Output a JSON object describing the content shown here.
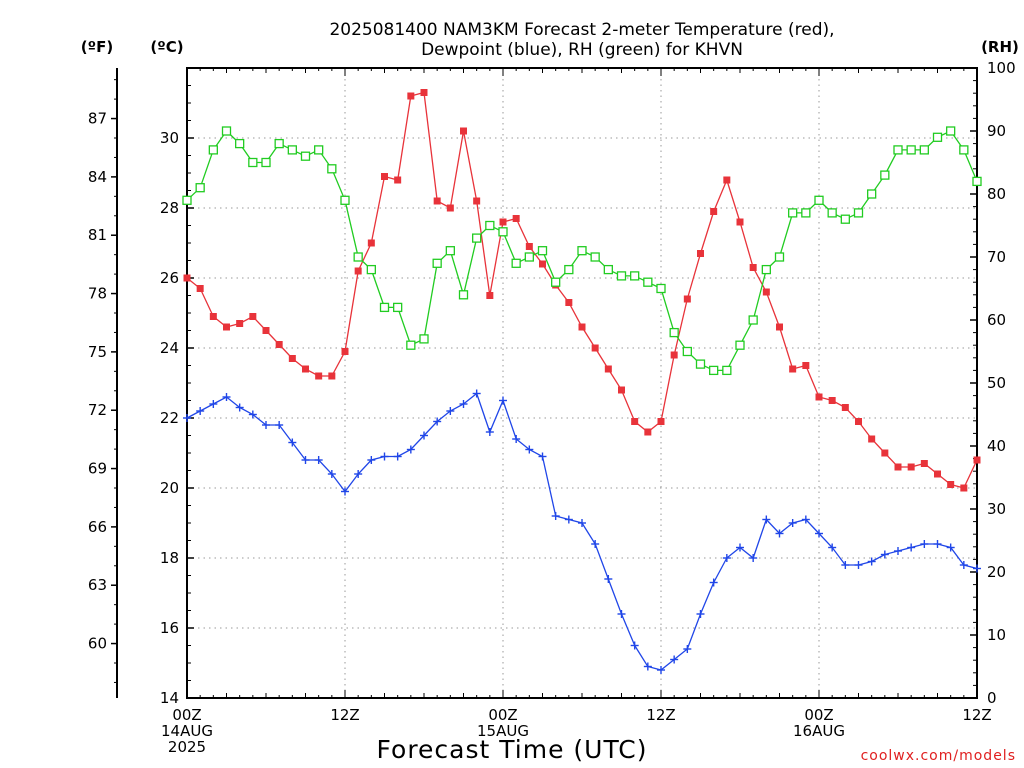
{
  "chart_data": {
    "type": "line",
    "title_lines": [
      "2025081400 NAM3KM Forecast 2-meter Temperature (red),",
      "Dewpoint (blue), RH (green) for KHVN"
    ],
    "xlabel": "Forecast Time (UTC)",
    "credit": "coolwx.com/models",
    "units": {
      "fahrenheit": "(ºF)",
      "celsius": "(ºC)",
      "rh": "(RH)"
    },
    "x_ticks": [
      {
        "h": 0,
        "lines": [
          "00Z",
          "14AUG",
          "2025"
        ]
      },
      {
        "h": 12,
        "lines": [
          "12Z"
        ]
      },
      {
        "h": 24,
        "lines": [
          "00Z",
          "15AUG"
        ]
      },
      {
        "h": 36,
        "lines": [
          "12Z"
        ]
      },
      {
        "h": 48,
        "lines": [
          "00Z",
          "16AUG"
        ]
      },
      {
        "h": 60,
        "lines": [
          "12Z"
        ]
      }
    ],
    "xlim": [
      0,
      60
    ],
    "celsius_ylim": [
      14,
      32
    ],
    "celsius_ticks": [
      "14",
      "16",
      "18",
      "20",
      "22",
      "24",
      "26",
      "28",
      "30"
    ],
    "fahrenheit_ticks": [
      "60",
      "63",
      "66",
      "69",
      "72",
      "75",
      "78",
      "81",
      "84",
      "87"
    ],
    "rh_ylim": [
      0,
      100
    ],
    "rh_ticks": [
      "0",
      "10",
      "20",
      "30",
      "40",
      "50",
      "60",
      "70",
      "80",
      "90",
      "100"
    ],
    "grid": true,
    "x_hours": [
      0,
      1,
      2,
      3,
      4,
      5,
      6,
      7,
      8,
      9,
      10,
      11,
      12,
      13,
      14,
      15,
      16,
      17,
      18,
      19,
      20,
      21,
      22,
      23,
      24,
      25,
      26,
      27,
      28,
      29,
      30,
      31,
      32,
      33,
      34,
      35,
      36,
      37,
      38,
      39,
      40,
      41,
      42,
      43,
      44,
      45,
      46,
      47,
      48,
      49,
      50,
      51,
      52,
      53,
      54,
      55,
      56,
      57,
      58,
      59,
      60
    ],
    "series": [
      {
        "name": "Temperature",
        "color": "#e8333a",
        "axis": "celsius",
        "marker": "filled-square",
        "values": [
          26.0,
          25.7,
          24.9,
          24.6,
          24.7,
          24.9,
          24.5,
          24.1,
          23.7,
          23.4,
          23.2,
          23.2,
          23.9,
          26.2,
          27.0,
          28.9,
          28.8,
          31.2,
          31.3,
          28.2,
          28.0,
          30.2,
          28.2,
          25.5,
          27.6,
          27.7,
          26.9,
          26.4,
          25.8,
          25.3,
          24.6,
          24.0,
          23.4,
          22.8,
          21.9,
          21.6,
          21.9,
          23.8,
          25.4,
          26.7,
          27.9,
          28.8,
          27.6,
          26.3,
          25.6,
          24.6,
          23.4,
          23.5,
          22.6,
          22.5,
          22.3,
          21.9,
          21.4,
          21.0,
          20.6,
          20.6,
          20.7,
          20.4,
          20.1,
          20.0,
          20.8
        ]
      },
      {
        "name": "Dewpoint",
        "color": "#2046e8",
        "axis": "celsius",
        "marker": "plus",
        "values": [
          22.0,
          22.2,
          22.4,
          22.6,
          22.3,
          22.1,
          21.8,
          21.8,
          21.3,
          20.8,
          20.8,
          20.4,
          19.9,
          20.4,
          20.8,
          20.9,
          20.9,
          21.1,
          21.5,
          21.9,
          22.2,
          22.4,
          22.7,
          21.6,
          22.5,
          21.4,
          21.1,
          20.9,
          19.2,
          19.1,
          19.0,
          18.4,
          17.4,
          16.4,
          15.5,
          14.9,
          14.8,
          15.1,
          15.4,
          16.4,
          17.3,
          18.0,
          18.3,
          18.0,
          19.1,
          18.7,
          19.0,
          19.1,
          18.7,
          18.3,
          17.8,
          17.8,
          17.9,
          18.1,
          18.2,
          18.3,
          18.4,
          18.4,
          18.3,
          17.8,
          17.7
        ]
      },
      {
        "name": "RH",
        "color": "#21cc21",
        "axis": "rh",
        "marker": "open-square",
        "values": [
          79,
          81,
          87,
          90,
          88,
          85,
          85,
          88,
          87,
          86,
          87,
          84,
          79,
          70,
          68,
          62,
          62,
          56,
          57,
          69,
          71,
          64,
          73,
          75,
          74,
          69,
          70,
          71,
          66,
          68,
          71,
          70,
          68,
          67,
          67,
          66,
          65,
          58,
          55,
          53,
          52,
          52,
          56,
          60,
          68,
          70,
          77,
          77,
          79,
          77,
          76,
          77,
          80,
          83,
          87,
          87,
          87,
          89,
          90,
          87,
          82
        ]
      }
    ]
  }
}
